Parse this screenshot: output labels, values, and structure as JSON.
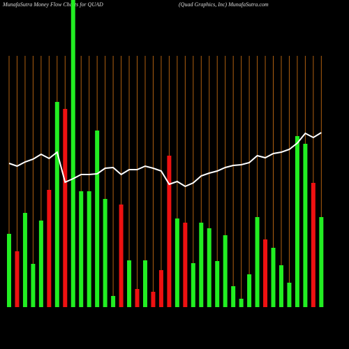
{
  "chart_data": {
    "type": "bar",
    "title": "MunafaSutra  Money Flow  Charts for QUAD",
    "subtitle": "(Quad Graphics,  Inc) MunafaSutra.com",
    "ylim": [
      0,
      440
    ],
    "values": [
      105,
      80,
      135,
      62,
      124,
      168,
      294,
      284,
      440,
      166,
      166,
      253,
      155,
      16,
      147,
      67,
      26,
      67,
      22,
      53,
      217,
      127,
      121,
      63,
      121,
      113,
      66,
      103,
      30,
      12,
      47,
      129,
      97,
      85,
      60,
      35,
      245,
      234,
      178,
      129
    ],
    "colors": [
      "#22ee22",
      "#ee1111",
      "#22ee22",
      "#22ee22",
      "#22ee22",
      "#ee1111",
      "#22ee22",
      "#ee1111",
      "#22ee22",
      "#22ee22",
      "#22ee22",
      "#22ee22",
      "#22ee22",
      "#22ee22",
      "#ee1111",
      "#22ee22",
      "#ee1111",
      "#22ee22",
      "#ee1111",
      "#ee1111",
      "#ee1111",
      "#22ee22",
      "#ee1111",
      "#22ee22",
      "#22ee22",
      "#22ee22",
      "#22ee22",
      "#22ee22",
      "#22ee22",
      "#22ee22",
      "#22ee22",
      "#22ee22",
      "#ee1111",
      "#22ee22",
      "#22ee22",
      "#22ee22",
      "#22ee22",
      "#22ee22",
      "#ee1111",
      "#22ee22"
    ],
    "line_values": [
      206,
      202,
      208,
      212,
      219,
      213,
      222,
      179,
      184,
      190,
      190,
      191,
      199,
      200,
      190,
      197,
      197,
      202,
      199,
      195,
      176,
      180,
      173,
      178,
      188,
      192,
      195,
      200,
      203,
      204,
      207,
      217,
      214,
      220,
      222,
      226,
      235,
      249,
      243,
      250
    ],
    "line_color": "#ffffff",
    "grid_color": "#b06010"
  }
}
